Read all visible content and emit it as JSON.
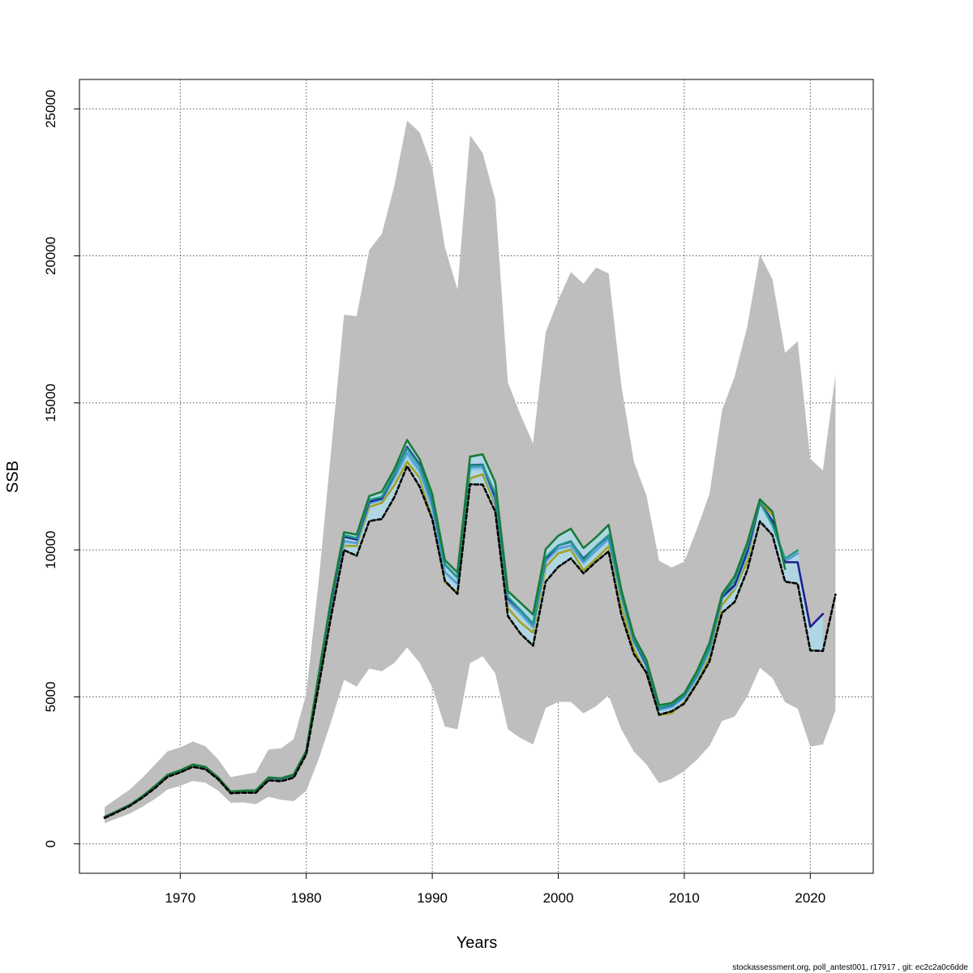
{
  "chart_data": {
    "type": "line",
    "title": "",
    "xlabel": "Years",
    "ylabel": "SSB",
    "xlim": [
      1962,
      2025
    ],
    "ylim": [
      -1000,
      26000
    ],
    "x_ticks": [
      1970,
      1980,
      1990,
      2000,
      2010,
      2020
    ],
    "y_ticks": [
      0,
      5000,
      10000,
      15000,
      20000,
      25000
    ],
    "grid": true,
    "legend": "none",
    "colors": {
      "band_outer": "#bebebe",
      "band_inner": "#add8e6",
      "base_line": "#000000",
      "gridline": "#555555"
    },
    "confidence_band": {
      "years": [
        1964,
        1965,
        1966,
        1967,
        1968,
        1969,
        1970,
        1971,
        1972,
        1973,
        1974,
        1975,
        1976,
        1977,
        1978,
        1979,
        1980,
        1981,
        1982,
        1983,
        1984,
        1985,
        1986,
        1987,
        1988,
        1989,
        1990,
        1991,
        1992,
        1993,
        1994,
        1995,
        1996,
        1997,
        1998,
        1999,
        2000,
        2001,
        2002,
        2003,
        2004,
        2005,
        2006,
        2007,
        2008,
        2009,
        2010,
        2011,
        2012,
        2013,
        2014,
        2015,
        2016,
        2017,
        2018,
        2019,
        2020,
        2021,
        2022
      ],
      "upper": [
        1250,
        1550,
        1850,
        2250,
        2700,
        3150,
        3280,
        3480,
        3320,
        2880,
        2270,
        2350,
        2430,
        3210,
        3250,
        3560,
        5100,
        9000,
        13500,
        18000,
        17950,
        20200,
        20750,
        22400,
        24600,
        24200,
        23000,
        20300,
        18850,
        24100,
        23500,
        21900,
        15700,
        14600,
        13620,
        17400,
        18500,
        19450,
        19050,
        19600,
        19400,
        15600,
        13000,
        11850,
        9630,
        9400,
        9600,
        10700,
        11900,
        14750,
        15900,
        17600,
        20050,
        19200,
        16700,
        17100,
        13100,
        12700,
        15950
      ],
      "lower": [
        700,
        870,
        1030,
        1260,
        1530,
        1850,
        1970,
        2140,
        2080,
        1810,
        1400,
        1410,
        1350,
        1600,
        1500,
        1450,
        1800,
        2900,
        4200,
        5580,
        5350,
        5960,
        5870,
        6160,
        6680,
        6160,
        5330,
        3990,
        3900,
        6150,
        6380,
        5800,
        3900,
        3600,
        3380,
        4620,
        4830,
        4830,
        4440,
        4680,
        5050,
        3900,
        3140,
        2700,
        2060,
        2210,
        2480,
        2860,
        3330,
        4180,
        4330,
        5010,
        5990,
        5640,
        4820,
        4600,
        3310,
        3380,
        4540
      ]
    },
    "series": [
      {
        "color": "#000000",
        "dash": true,
        "width": 2.6,
        "x": [
          1964,
          1965,
          1966,
          1967,
          1968,
          1969,
          1970,
          1971,
          1972,
          1973,
          1974,
          1975,
          1976,
          1977,
          1978,
          1979,
          1980,
          1981,
          1982,
          1983,
          1984,
          1985,
          1986,
          1987,
          1988,
          1989,
          1990,
          1991,
          1992,
          1993,
          1994,
          1995,
          1996,
          1997,
          1998,
          1999,
          2000,
          2001,
          2002,
          2003,
          2004,
          2005,
          2006,
          2007,
          2008,
          2009,
          2010,
          2011,
          2012,
          2013,
          2014,
          2015,
          2016,
          2017,
          2018,
          2019,
          2020,
          2021,
          2022
        ],
        "values": [
          880,
          1080,
          1290,
          1570,
          1900,
          2280,
          2430,
          2620,
          2540,
          2200,
          1720,
          1740,
          1740,
          2160,
          2130,
          2250,
          3050,
          5400,
          7800,
          9990,
          9800,
          10980,
          11050,
          11800,
          12850,
          12150,
          11050,
          8950,
          8500,
          12230,
          12220,
          11300,
          7750,
          7150,
          6740,
          8920,
          9420,
          9710,
          9200,
          9600,
          9950,
          7800,
          6460,
          5820,
          4390,
          4510,
          4770,
          5450,
          6200,
          7860,
          8230,
          9310,
          10970,
          10500,
          8920,
          8850,
          6580,
          6560,
          8480
        ]
      },
      {
        "color": "#a3a026",
        "dash": false,
        "width": 2.6,
        "x": [
          1964,
          1965,
          1966,
          1967,
          1968,
          1969,
          1970,
          1971,
          1972,
          1973,
          1974,
          1975,
          1976,
          1977,
          1978,
          1979,
          1980,
          1981,
          1982,
          1983,
          1984,
          1985,
          1986,
          1987,
          1988,
          1989,
          1990,
          1991,
          1992,
          1993,
          1994,
          1995,
          1996,
          1997,
          1998,
          1999,
          2000,
          2001,
          2002,
          2003,
          2004,
          2005,
          2006,
          2007,
          2008,
          2009,
          2010,
          2011,
          2012,
          2013,
          2014,
          2015,
          2016,
          2017
        ],
        "values": [
          900,
          1100,
          1310,
          1600,
          1950,
          2320,
          2470,
          2660,
          2580,
          2230,
          1760,
          1790,
          1800,
          2200,
          2180,
          2300,
          3100,
          5600,
          8050,
          10140,
          10130,
          11460,
          11600,
          12200,
          13000,
          12450,
          11100,
          8900,
          8530,
          12430,
          12570,
          11540,
          8020,
          7530,
          7180,
          9420,
          9880,
          10010,
          9300,
          9700,
          10120,
          8100,
          6620,
          5780,
          4390,
          4440,
          4820,
          5480,
          6350,
          8130,
          8650,
          9600,
          11670,
          11180
        ]
      },
      {
        "color": "#87ceeb",
        "dash": false,
        "width": 2.6,
        "x": [
          1964,
          1965,
          1966,
          1967,
          1968,
          1969,
          1970,
          1971,
          1972,
          1973,
          1974,
          1975,
          1976,
          1977,
          1978,
          1979,
          1980,
          1981,
          1982,
          1983,
          1984,
          1985,
          1986,
          1987,
          1988,
          1989,
          1990,
          1991,
          1992,
          1993,
          1994,
          1995,
          1996,
          1997,
          1998,
          1999,
          2000,
          2001,
          2002,
          2003,
          2004,
          2005,
          2006,
          2007,
          2008,
          2009,
          2010,
          2011,
          2012,
          2013,
          2014,
          2015,
          2016,
          2017,
          2018
        ],
        "values": [
          910,
          1110,
          1320,
          1610,
          1960,
          2330,
          2480,
          2680,
          2600,
          2250,
          1770,
          1800,
          1810,
          2230,
          2200,
          2330,
          3130,
          5650,
          8150,
          10240,
          10220,
          11580,
          11700,
          12420,
          13200,
          12600,
          11300,
          9200,
          8800,
          12720,
          12750,
          11650,
          8250,
          7800,
          7330,
          9600,
          10000,
          10100,
          9520,
          9940,
          10320,
          8350,
          6830,
          6000,
          4530,
          4620,
          4950,
          5620,
          6520,
          8320,
          8720,
          9800,
          11600,
          10820,
          9540
        ]
      },
      {
        "color": "#5b9bd5",
        "dash": false,
        "width": 2.6,
        "x": [
          1964,
          1965,
          1966,
          1967,
          1968,
          1969,
          1970,
          1971,
          1972,
          1973,
          1974,
          1975,
          1976,
          1977,
          1978,
          1979,
          1980,
          1981,
          1982,
          1983,
          1984,
          1985,
          1986,
          1987,
          1988,
          1989,
          1990,
          1991,
          1992,
          1993,
          1994,
          1995,
          1996,
          1997,
          1998,
          1999,
          2000,
          2001,
          2002,
          2003,
          2004,
          2005,
          2006,
          2007,
          2008,
          2009,
          2010,
          2011,
          2012,
          2013,
          2014,
          2015,
          2016,
          2017,
          2018,
          2019
        ],
        "values": [
          910,
          1110,
          1320,
          1610,
          1960,
          2340,
          2490,
          2690,
          2610,
          2250,
          1770,
          1800,
          1810,
          2230,
          2200,
          2330,
          3130,
          5650,
          8150,
          10300,
          10230,
          11580,
          11700,
          12450,
          13300,
          12700,
          11450,
          9250,
          8850,
          12800,
          12820,
          11700,
          8250,
          7850,
          7380,
          9620,
          10050,
          10150,
          9570,
          9990,
          10380,
          8420,
          6880,
          6040,
          4560,
          4660,
          4990,
          5660,
          6570,
          8370,
          8770,
          9850,
          11600,
          10870,
          9600,
          9880
        ]
      },
      {
        "color": "#1f1f8c",
        "dash": false,
        "width": 2.6,
        "x": [
          1964,
          1965,
          1966,
          1967,
          1968,
          1969,
          1970,
          1971,
          1972,
          1973,
          1974,
          1975,
          1976,
          1977,
          1978,
          1979,
          1980,
          1981,
          1982,
          1983,
          1984,
          1985,
          1986,
          1987,
          1988,
          1989,
          1990,
          1991,
          1992,
          1993,
          1994,
          1995,
          1996,
          1997,
          1998,
          1999,
          2000,
          2001,
          2002,
          2003,
          2004,
          2005,
          2006,
          2007,
          2008,
          2009,
          2010,
          2011,
          2012,
          2013,
          2014,
          2015,
          2016,
          2017,
          2018,
          2019,
          2020,
          2021
        ],
        "values": [
          915,
          1115,
          1325,
          1615,
          1965,
          2345,
          2495,
          2695,
          2615,
          2255,
          1775,
          1805,
          1815,
          2240,
          2210,
          2340,
          3140,
          5700,
          8250,
          10450,
          10350,
          11640,
          11750,
          12580,
          13500,
          12900,
          11660,
          9500,
          9060,
          12880,
          12900,
          11800,
          8350,
          7950,
          7480,
          9700,
          10150,
          10280,
          9700,
          10110,
          10480,
          8500,
          6950,
          6100,
          4620,
          4720,
          5050,
          5750,
          6650,
          8400,
          8800,
          9950,
          11620,
          10980,
          9580,
          9580,
          7380,
          7820
        ]
      },
      {
        "color": "#1e9a8c",
        "dash": false,
        "width": 2.6,
        "x": [
          1964,
          1965,
          1966,
          1967,
          1968,
          1969,
          1970,
          1971,
          1972,
          1973,
          1974,
          1975,
          1976,
          1977,
          1978,
          1979,
          1980,
          1981,
          1982,
          1983,
          1984,
          1985,
          1986,
          1987,
          1988,
          1989,
          1990,
          1991,
          1992,
          1993,
          1994,
          1995,
          1996,
          1997,
          1998,
          1999,
          2000,
          2001,
          2002,
          2003,
          2004,
          2005,
          2006,
          2007,
          2008,
          2009,
          2010,
          2011,
          2012,
          2013,
          2014,
          2015,
          2016,
          2017,
          2018,
          2019
        ],
        "values": [
          915,
          1115,
          1325,
          1615,
          1965,
          2345,
          2495,
          2695,
          2615,
          2255,
          1775,
          1805,
          1815,
          2250,
          2220,
          2350,
          3150,
          5750,
          8300,
          10500,
          10400,
          11700,
          11800,
          12600,
          13450,
          12850,
          11700,
          9500,
          9050,
          12860,
          12880,
          11900,
          8400,
          7950,
          7480,
          9750,
          10150,
          10300,
          9650,
          10120,
          10500,
          8480,
          6970,
          6150,
          4630,
          4730,
          5060,
          5760,
          6650,
          8450,
          8950,
          10100,
          11640,
          10850,
          9700,
          9980
        ]
      },
      {
        "color": "#1a7a3a",
        "dash": false,
        "width": 2.6,
        "x": [
          1964,
          1965,
          1966,
          1967,
          1968,
          1969,
          1970,
          1971,
          1972,
          1973,
          1974,
          1975,
          1976,
          1977,
          1978,
          1979,
          1980,
          1981,
          1982,
          1983,
          1984,
          1985,
          1986,
          1987,
          1988,
          1989,
          1990,
          1991,
          1992,
          1993,
          1994,
          1995,
          1996,
          1997,
          1998,
          1999,
          2000,
          2001,
          2002,
          2003,
          2004,
          2005,
          2006,
          2007,
          2008,
          2009,
          2010,
          2011,
          2012,
          2013,
          2014,
          2015,
          2016,
          2017,
          2018
        ],
        "values": [
          920,
          1120,
          1330,
          1620,
          1970,
          2350,
          2500,
          2700,
          2620,
          2260,
          1780,
          1810,
          1820,
          2260,
          2230,
          2360,
          3160,
          5800,
          8400,
          10600,
          10520,
          11830,
          11980,
          12750,
          13740,
          13080,
          11900,
          9650,
          9230,
          13170,
          13250,
          12300,
          8600,
          8200,
          7800,
          10020,
          10480,
          10720,
          10060,
          10430,
          10850,
          8650,
          7060,
          6250,
          4720,
          4790,
          5120,
          5870,
          6830,
          8500,
          9100,
          10240,
          11720,
          11300,
          9350
        ]
      }
    ],
    "footer": "stockassessment.org, poll_antest001, r17917 , git: ec2c2a0c6dde"
  }
}
